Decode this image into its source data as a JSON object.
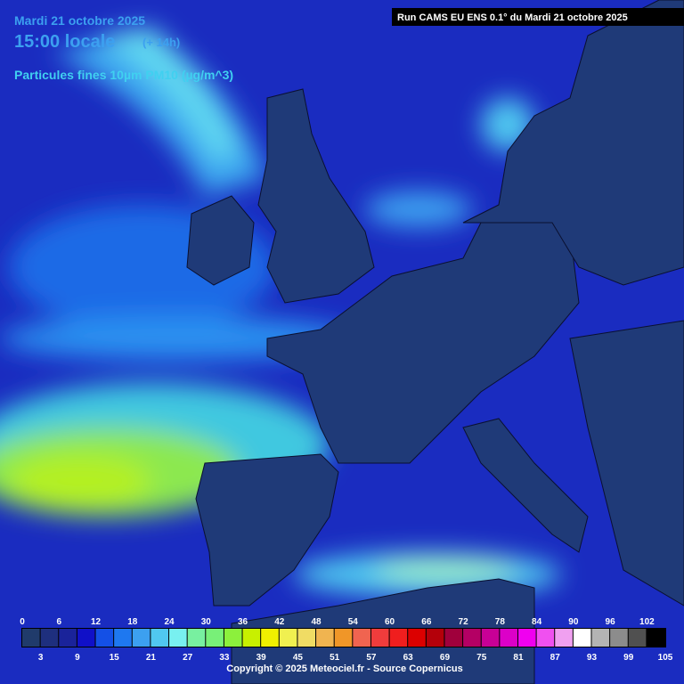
{
  "header": {
    "date": "Mardi 21 octobre 2025",
    "time": "15:00 locale",
    "lead": "(+ 14h)",
    "parameter": "Particules fines 10µm PM10 (µg/m^3)",
    "run": "Run CAMS EU ENS 0.1° du Mardi 21 octobre 2025"
  },
  "legend": {
    "values": [
      0,
      3,
      6,
      9,
      12,
      15,
      18,
      21,
      24,
      27,
      30,
      33,
      36,
      39,
      42,
      45,
      48,
      51,
      54,
      57,
      60,
      63,
      66,
      69,
      72,
      75,
      78,
      81,
      84,
      87,
      90,
      93,
      96,
      99,
      102,
      105
    ],
    "colors": [
      "#203b6b",
      "#1e2f7e",
      "#1a239a",
      "#1010c8",
      "#1450e6",
      "#1e78f0",
      "#3ca0f0",
      "#50c8f0",
      "#78f0f0",
      "#78f0a0",
      "#78f078",
      "#8cf03c",
      "#c8f000",
      "#f0f000",
      "#f0f050",
      "#f0dc64",
      "#f0b450",
      "#f09628",
      "#f06450",
      "#f03c3c",
      "#f01e1e",
      "#dc0000",
      "#b4000a",
      "#a0003c",
      "#b40064",
      "#c80096",
      "#dc00c8",
      "#f000f0",
      "#f050f0",
      "#f0a0f0",
      "#ffffff",
      "#b4b4b4",
      "#8c8c8c",
      "#505050",
      "#000000"
    ]
  },
  "footer": {
    "copyright": "Copyright © 2025 Meteociel.fr - Source Copernicus"
  }
}
